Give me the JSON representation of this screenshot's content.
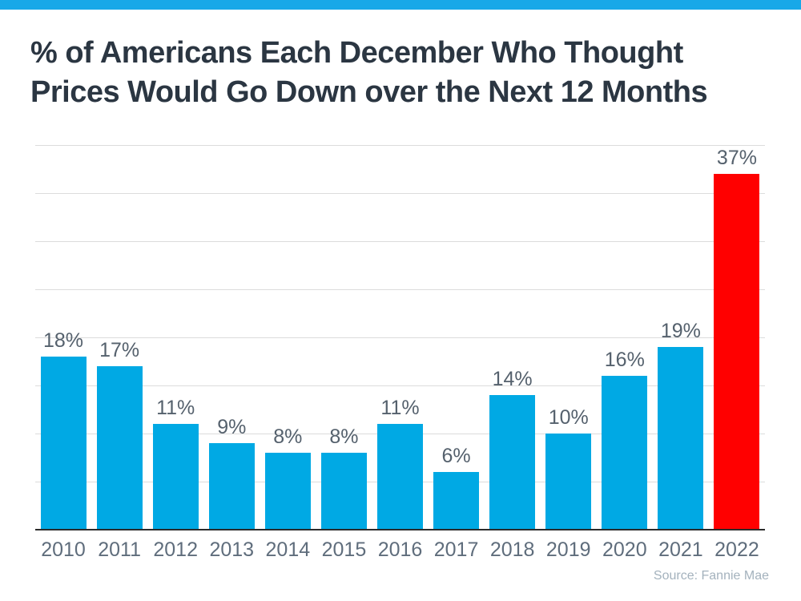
{
  "banner": {
    "color": "#18a8e8"
  },
  "header": {
    "title": "% of Americans Each December Who Thought\nPrices Would Go Down over the Next 12 Months"
  },
  "chart_data": {
    "type": "bar",
    "title": "% of Americans Each December Who Thought Prices Would Go Down over the Next 12 Months",
    "categories": [
      "2010",
      "2011",
      "2012",
      "2013",
      "2014",
      "2015",
      "2016",
      "2017",
      "2018",
      "2019",
      "2020",
      "2021",
      "2022"
    ],
    "values": [
      18,
      17,
      11,
      9,
      8,
      8,
      11,
      6,
      14,
      10,
      16,
      19,
      37
    ],
    "value_labels": [
      "18%",
      "17%",
      "11%",
      "9%",
      "8%",
      "8%",
      "11%",
      "6%",
      "14%",
      "10%",
      "16%",
      "19%",
      "37%"
    ],
    "xlabel": "",
    "ylabel": "",
    "ylim": [
      0,
      40
    ],
    "grid_step": 5,
    "grid": true,
    "legend_position": "none",
    "colors": {
      "bar_default": "#00a9e4",
      "bar_highlight": "#ff0000",
      "grid": "#dcdcdc",
      "axis": "#2b2b2b",
      "value_label": "#55616d",
      "tick_label": "#5f6d7c"
    },
    "highlight_index": 12
  },
  "footer": {
    "source": "Source: Fannie Mae"
  }
}
